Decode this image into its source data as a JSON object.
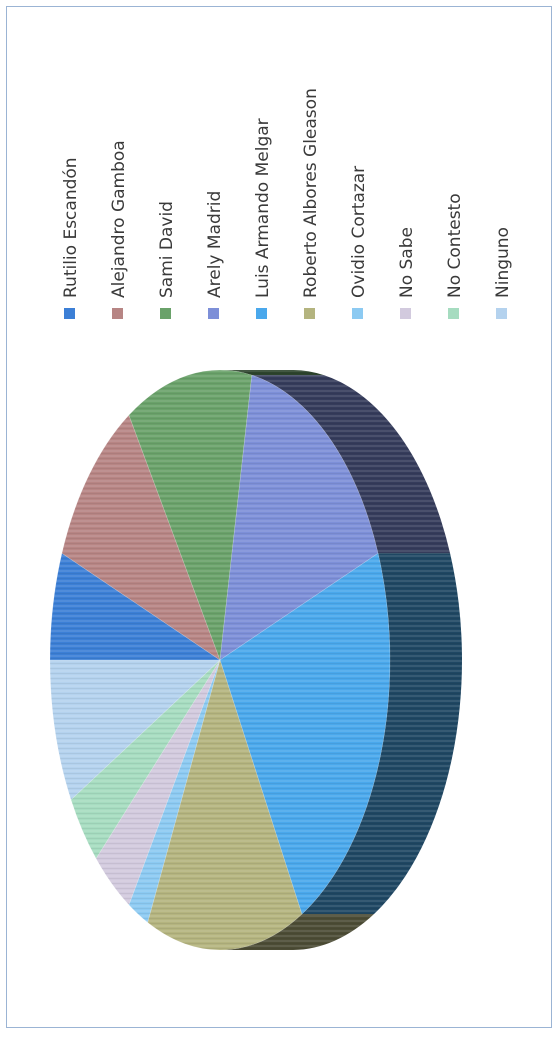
{
  "chart_data": {
    "type": "pie",
    "style": "3d",
    "legend_position": "right",
    "title": "",
    "slices": [
      {
        "label": "Rutilio Escandón",
        "value": 6,
        "color": "#3c7fd6"
      },
      {
        "label": "Alejandro Gamboa",
        "value": 10,
        "color": "#b78584"
      },
      {
        "label": "Sami David",
        "value": 12,
        "color": "#6aa26a"
      },
      {
        "label": "Arely Madrid",
        "value": 16,
        "color": "#7d8fd8"
      },
      {
        "label": "Luis Armando Melgar",
        "value": 23,
        "color": "#4aa8ec"
      },
      {
        "label": "Roberto Albores Gleason",
        "value": 15,
        "color": "#b4b47f"
      },
      {
        "label": "Ovidio Cortazar",
        "value": 2,
        "color": "#8ccaf2"
      },
      {
        "label": "No Sabe",
        "value": 4,
        "color": "#d2cade"
      },
      {
        "label": "No Contesto",
        "value": 4,
        "color": "#a6dcc0"
      },
      {
        "label": "Ninguno",
        "value": 8,
        "color": "#b4d2ee"
      }
    ]
  }
}
